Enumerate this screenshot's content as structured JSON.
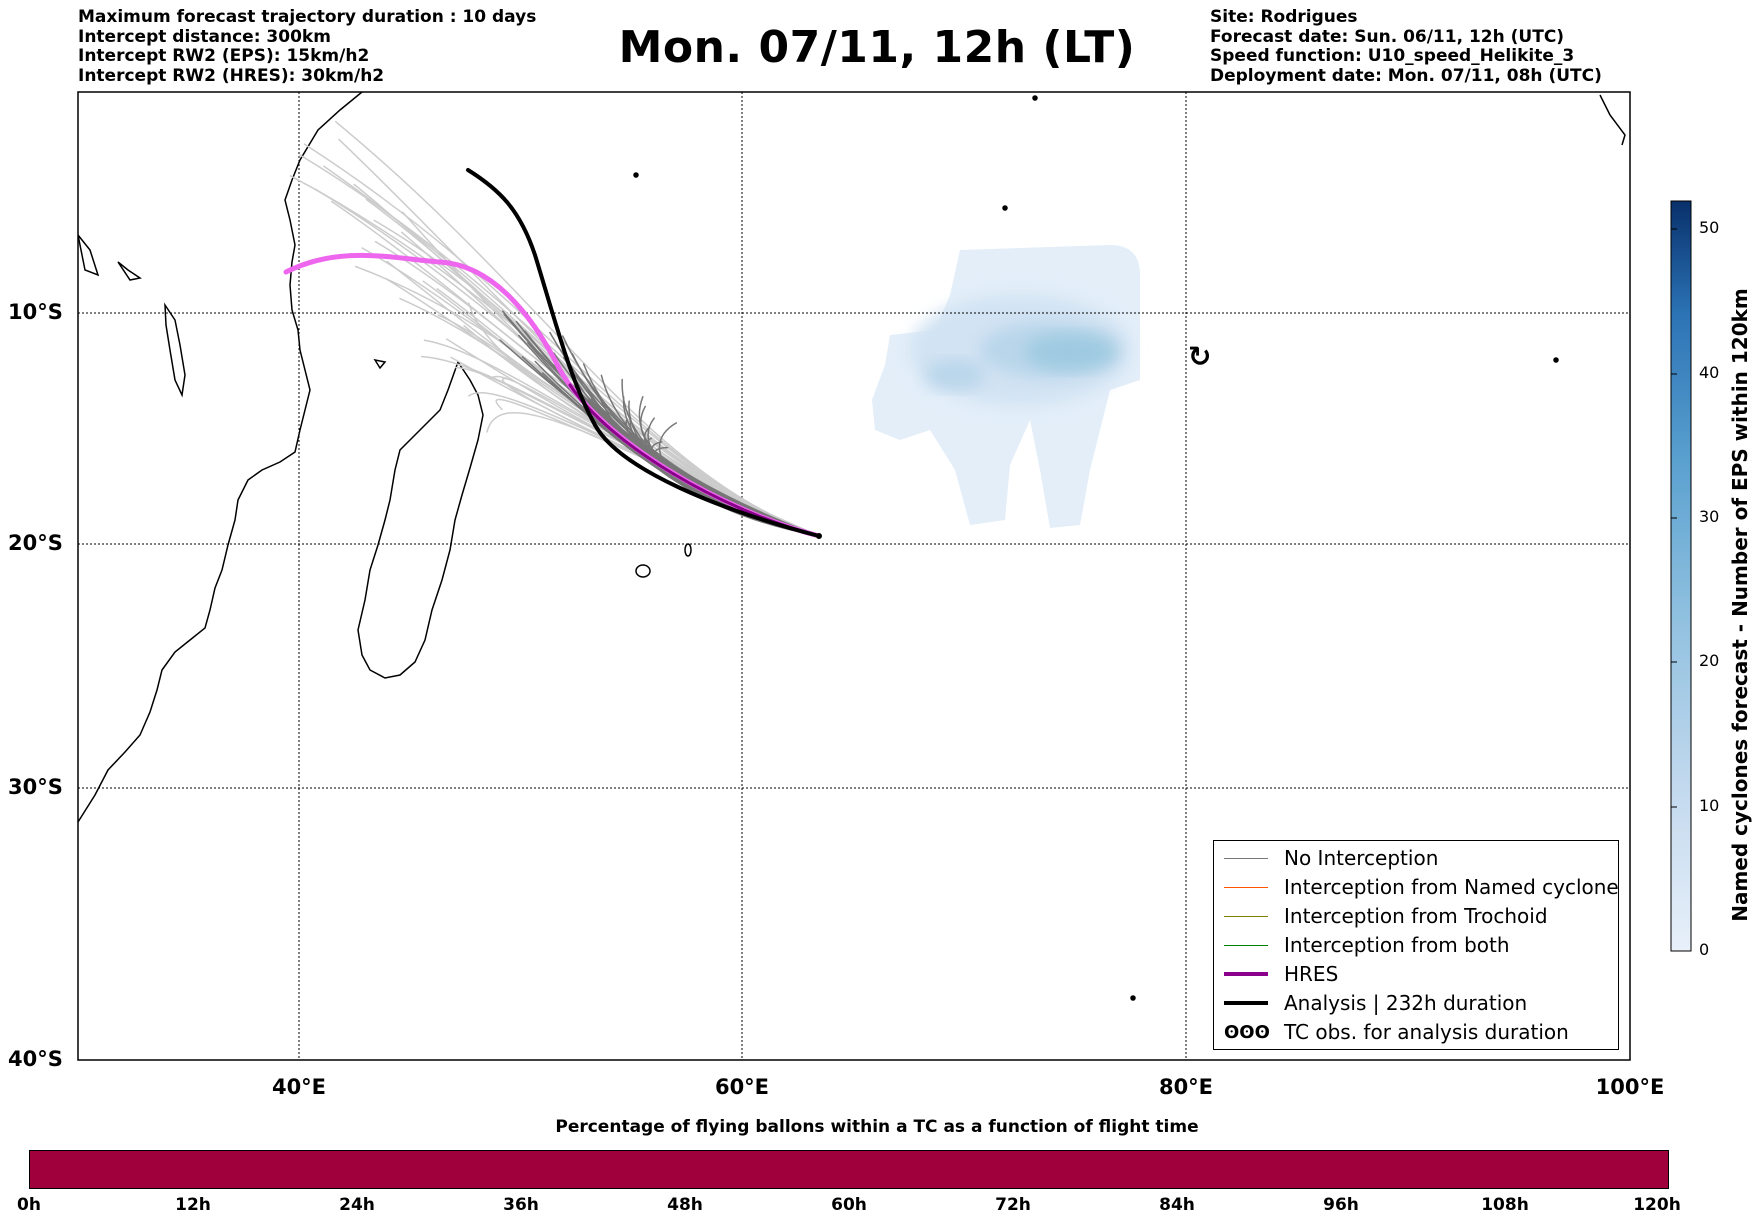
{
  "header_left": [
    "Maximum forecast trajectory duration : 10 days",
    "Intercept distance: 300km",
    "Intercept RW2 (EPS):  15km/h2",
    "Intercept RW2 (HRES): 30km/h2"
  ],
  "header_right": [
    "Site: Rodrigues",
    "Forecast date: Sun. 06/11, 12h (UTC)",
    "Speed function: U10_speed_Helikite_3",
    "Deployment date: Mon. 07/11, 08h (UTC)"
  ],
  "title": "Mon. 07/11, 12h (LT)",
  "map": {
    "lon_range": [
      30,
      100
    ],
    "lat_range": [
      -40,
      0
    ],
    "lon_ticks": [
      "40°E",
      "60°E",
      "80°E",
      "100°E"
    ],
    "lat_ticks": [
      "10°S",
      "20°S",
      "30°S",
      "40°S"
    ],
    "grid": "dotted",
    "release_point": {
      "lon": 63.4,
      "lat": -19.7
    },
    "cyclone_symbol": {
      "lon": 80.7,
      "lat": -12.0
    }
  },
  "colorbar": {
    "label": "Named cyclones forecast - Number of EPS within 120km",
    "ticks": [
      "0",
      "10",
      "20",
      "30",
      "40",
      "50"
    ],
    "min": 0,
    "max": 52
  },
  "legend": {
    "items": [
      {
        "label": "No Interception",
        "color": "#777777",
        "style": "thin"
      },
      {
        "label": "Interception from Named cyclone",
        "color": "#ff5500",
        "style": "thin"
      },
      {
        "label": "Interception from Trochoid",
        "color": "#808000",
        "style": "thin"
      },
      {
        "label": "Interception from both",
        "color": "#008000",
        "style": "thin"
      },
      {
        "label": "HRES",
        "color": "#8b008b",
        "style": "thick"
      },
      {
        "label": "Analysis | 232h duration",
        "color": "#000000",
        "style": "thick"
      },
      {
        "label": "TC obs. for analysis duration",
        "color": "#000000",
        "style": "symbol",
        "symbol": "ʘʘʘ"
      }
    ]
  },
  "flight_time_bar": {
    "title": "Percentage of flying ballons within a TC as a function of flight time",
    "color": "#a0003c",
    "ticks": [
      "0h",
      "12h",
      "24h",
      "36h",
      "48h",
      "60h",
      "72h",
      "84h",
      "96h",
      "108h",
      "120h"
    ]
  }
}
